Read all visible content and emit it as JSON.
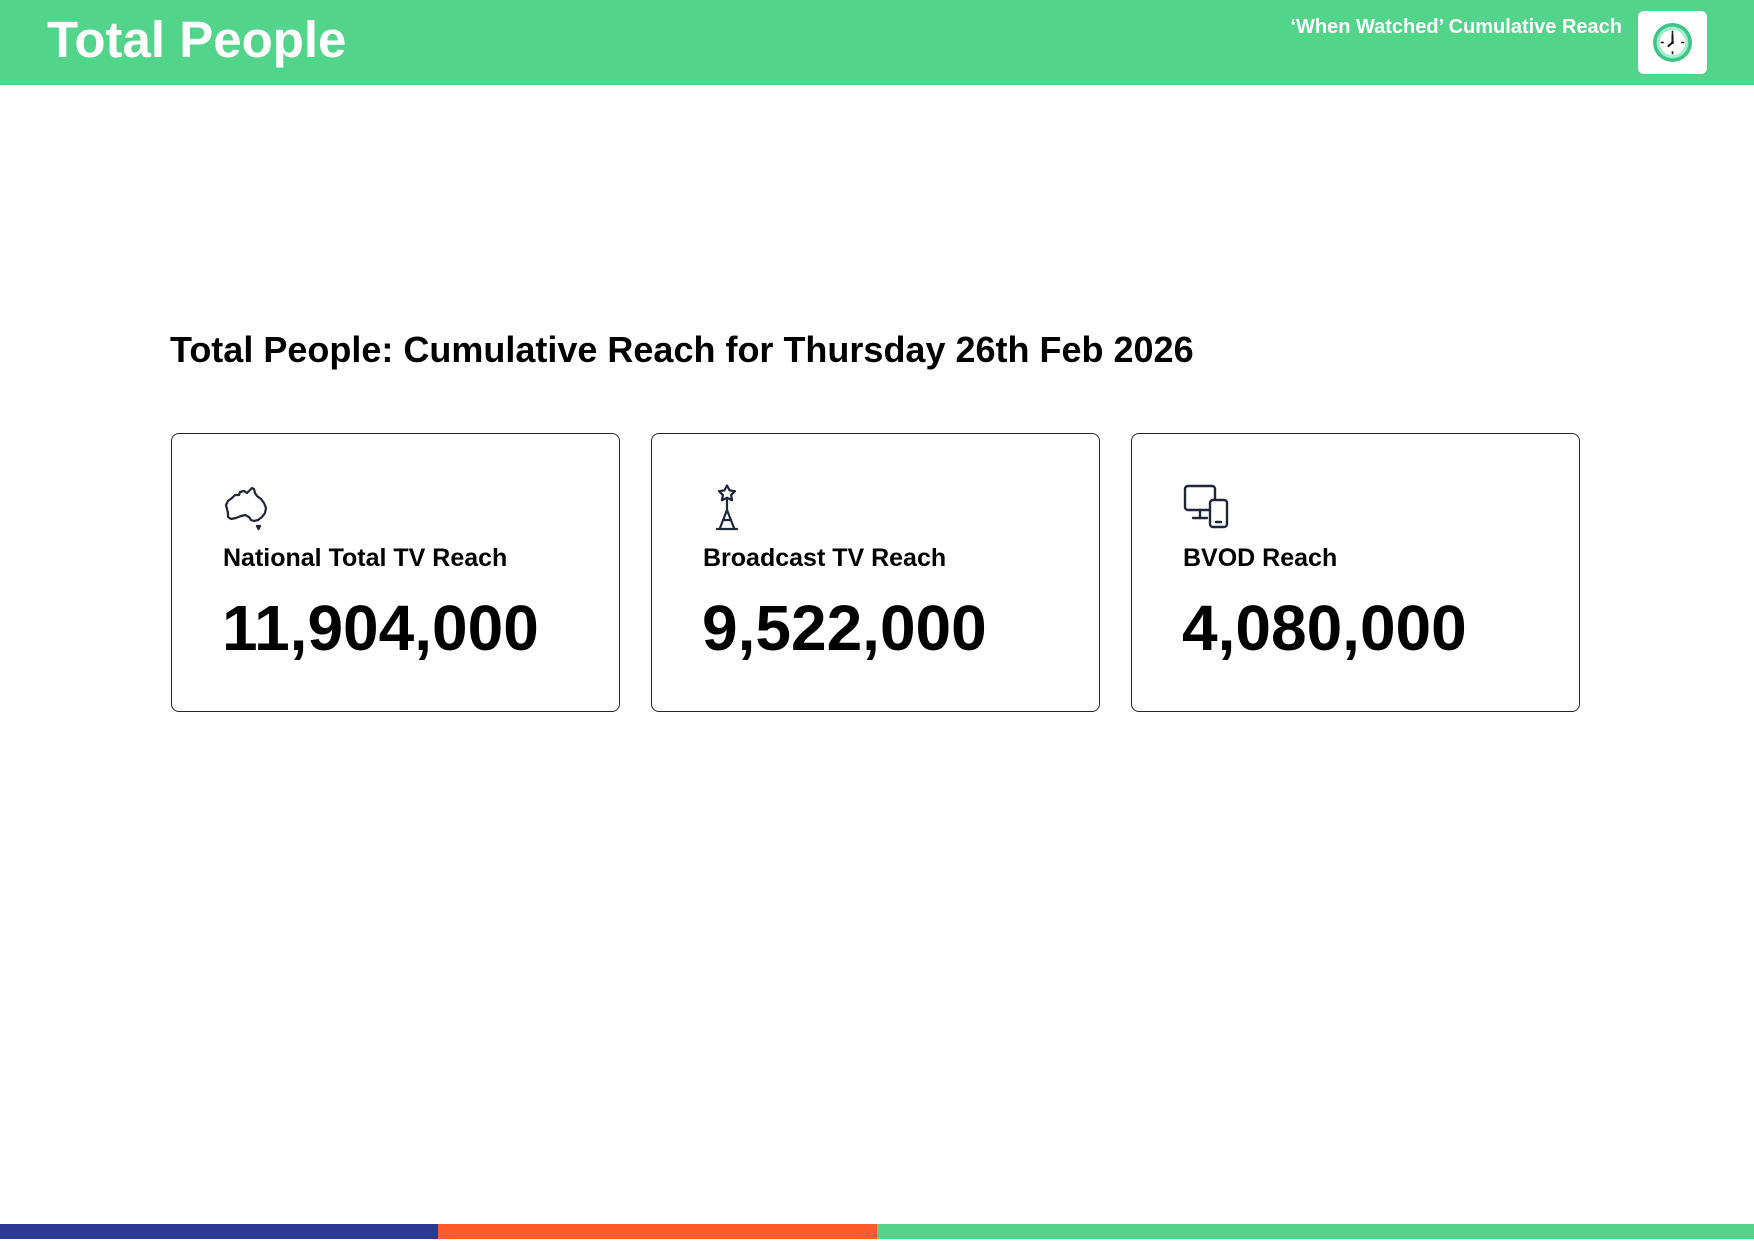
{
  "header": {
    "title": "Total People",
    "subtitle": "‘When Watched’ Cumulative Reach",
    "logo_icon": "clock-icon",
    "background_color": "#52d48a"
  },
  "main": {
    "section_title": "Total People: Cumulative Reach for Thursday 26th Feb 2026",
    "cards": [
      {
        "icon": "australia-map-icon",
        "label": "National Total TV Reach",
        "value": "11,904,000"
      },
      {
        "icon": "broadcast-tower-icon",
        "label": "Broadcast TV Reach",
        "value": "9,522,000"
      },
      {
        "icon": "devices-icon",
        "label": "BVOD Reach",
        "value": "4,080,000"
      }
    ]
  },
  "footer": {
    "bar_colors": [
      "#2b3990",
      "#ff5a2c",
      "#52d48a"
    ]
  }
}
